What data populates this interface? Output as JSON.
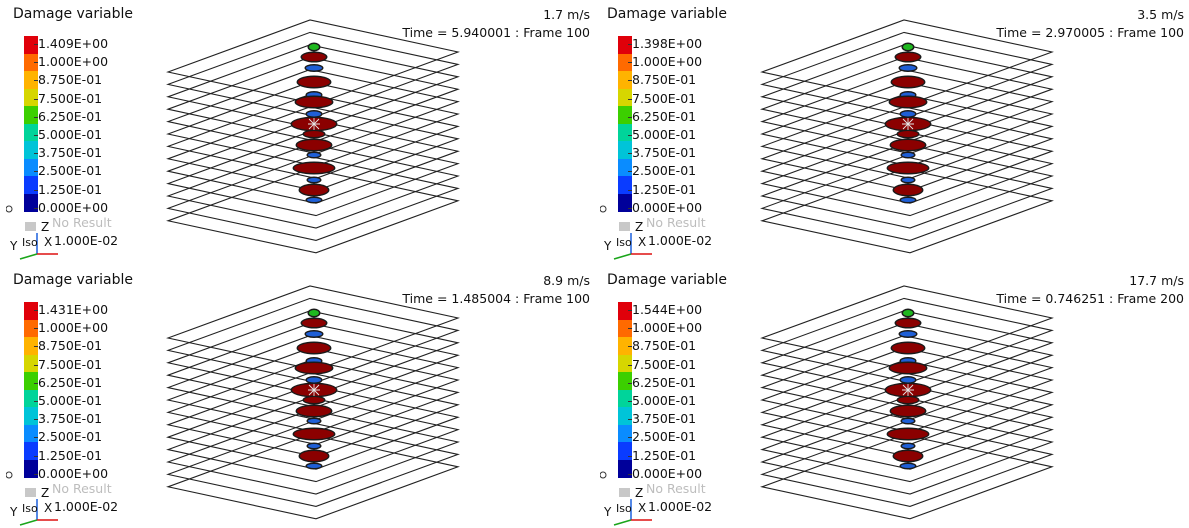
{
  "panels": [
    {
      "title": "Damage variable",
      "speed": "1.7 m/s",
      "time": "Time = 5.940001 : Frame 100",
      "legend_labels": [
        "1.409E+00",
        "1.000E+00",
        "8.750E-01",
        "7.500E-01",
        "6.250E-01",
        "5.000E-01",
        "3.750E-01",
        "2.500E-01",
        "1.250E-01",
        "0.000E+00"
      ],
      "no_result": "No Result",
      "scale": "1.000E-02",
      "triad": {
        "z": "Z",
        "y": "Y",
        "x": "X",
        "iso": "Iso"
      }
    },
    {
      "title": "Damage variable",
      "speed": "3.5 m/s",
      "time": "Time = 2.970005 : Frame 100",
      "legend_labels": [
        "1.398E+00",
        "1.000E+00",
        "8.750E-01",
        "7.500E-01",
        "6.250E-01",
        "5.000E-01",
        "3.750E-01",
        "2.500E-01",
        "1.250E-01",
        "0.000E+00"
      ],
      "no_result": "No Result",
      "scale": "1.000E-02",
      "triad": {
        "z": "Z",
        "y": "Y",
        "x": "X",
        "iso": "Iso"
      }
    },
    {
      "title": "Damage variable",
      "speed": "8.9 m/s",
      "time": "Time = 1.485004 : Frame 100",
      "legend_labels": [
        "1.431E+00",
        "1.000E+00",
        "8.750E-01",
        "7.500E-01",
        "6.250E-01",
        "5.000E-01",
        "3.750E-01",
        "2.500E-01",
        "1.250E-01",
        "0.000E+00"
      ],
      "no_result": "No Result",
      "scale": "1.000E-02",
      "triad": {
        "z": "Z",
        "y": "Y",
        "x": "X",
        "iso": "Iso"
      }
    },
    {
      "title": "Damage variable",
      "speed": "17.7 m/s",
      "time": "Time = 0.746251 : Frame 200",
      "legend_labels": [
        "1.544E+00",
        "1.000E+00",
        "8.750E-01",
        "7.500E-01",
        "6.250E-01",
        "5.000E-01",
        "3.750E-01",
        "2.500E-01",
        "1.250E-01",
        "0.000E+00"
      ],
      "no_result": "No Result",
      "scale": "1.000E-02",
      "triad": {
        "z": "Z",
        "y": "Y",
        "x": "X",
        "iso": "Iso"
      }
    }
  ],
  "colors": {
    "legend_bands": [
      "#e0000a",
      "#ff6a00",
      "#ffb300",
      "#d6d600",
      "#3ccf00",
      "#00d49a",
      "#00c4d8",
      "#0a8cff",
      "#0a3cff",
      "#00009a"
    ],
    "no_result": "#c8c8c8",
    "damage_red": "#8b0000",
    "plate_line": "#222222",
    "low_damage_blue": "#1f5fd6",
    "mid_damage_green": "#1fb81f"
  }
}
